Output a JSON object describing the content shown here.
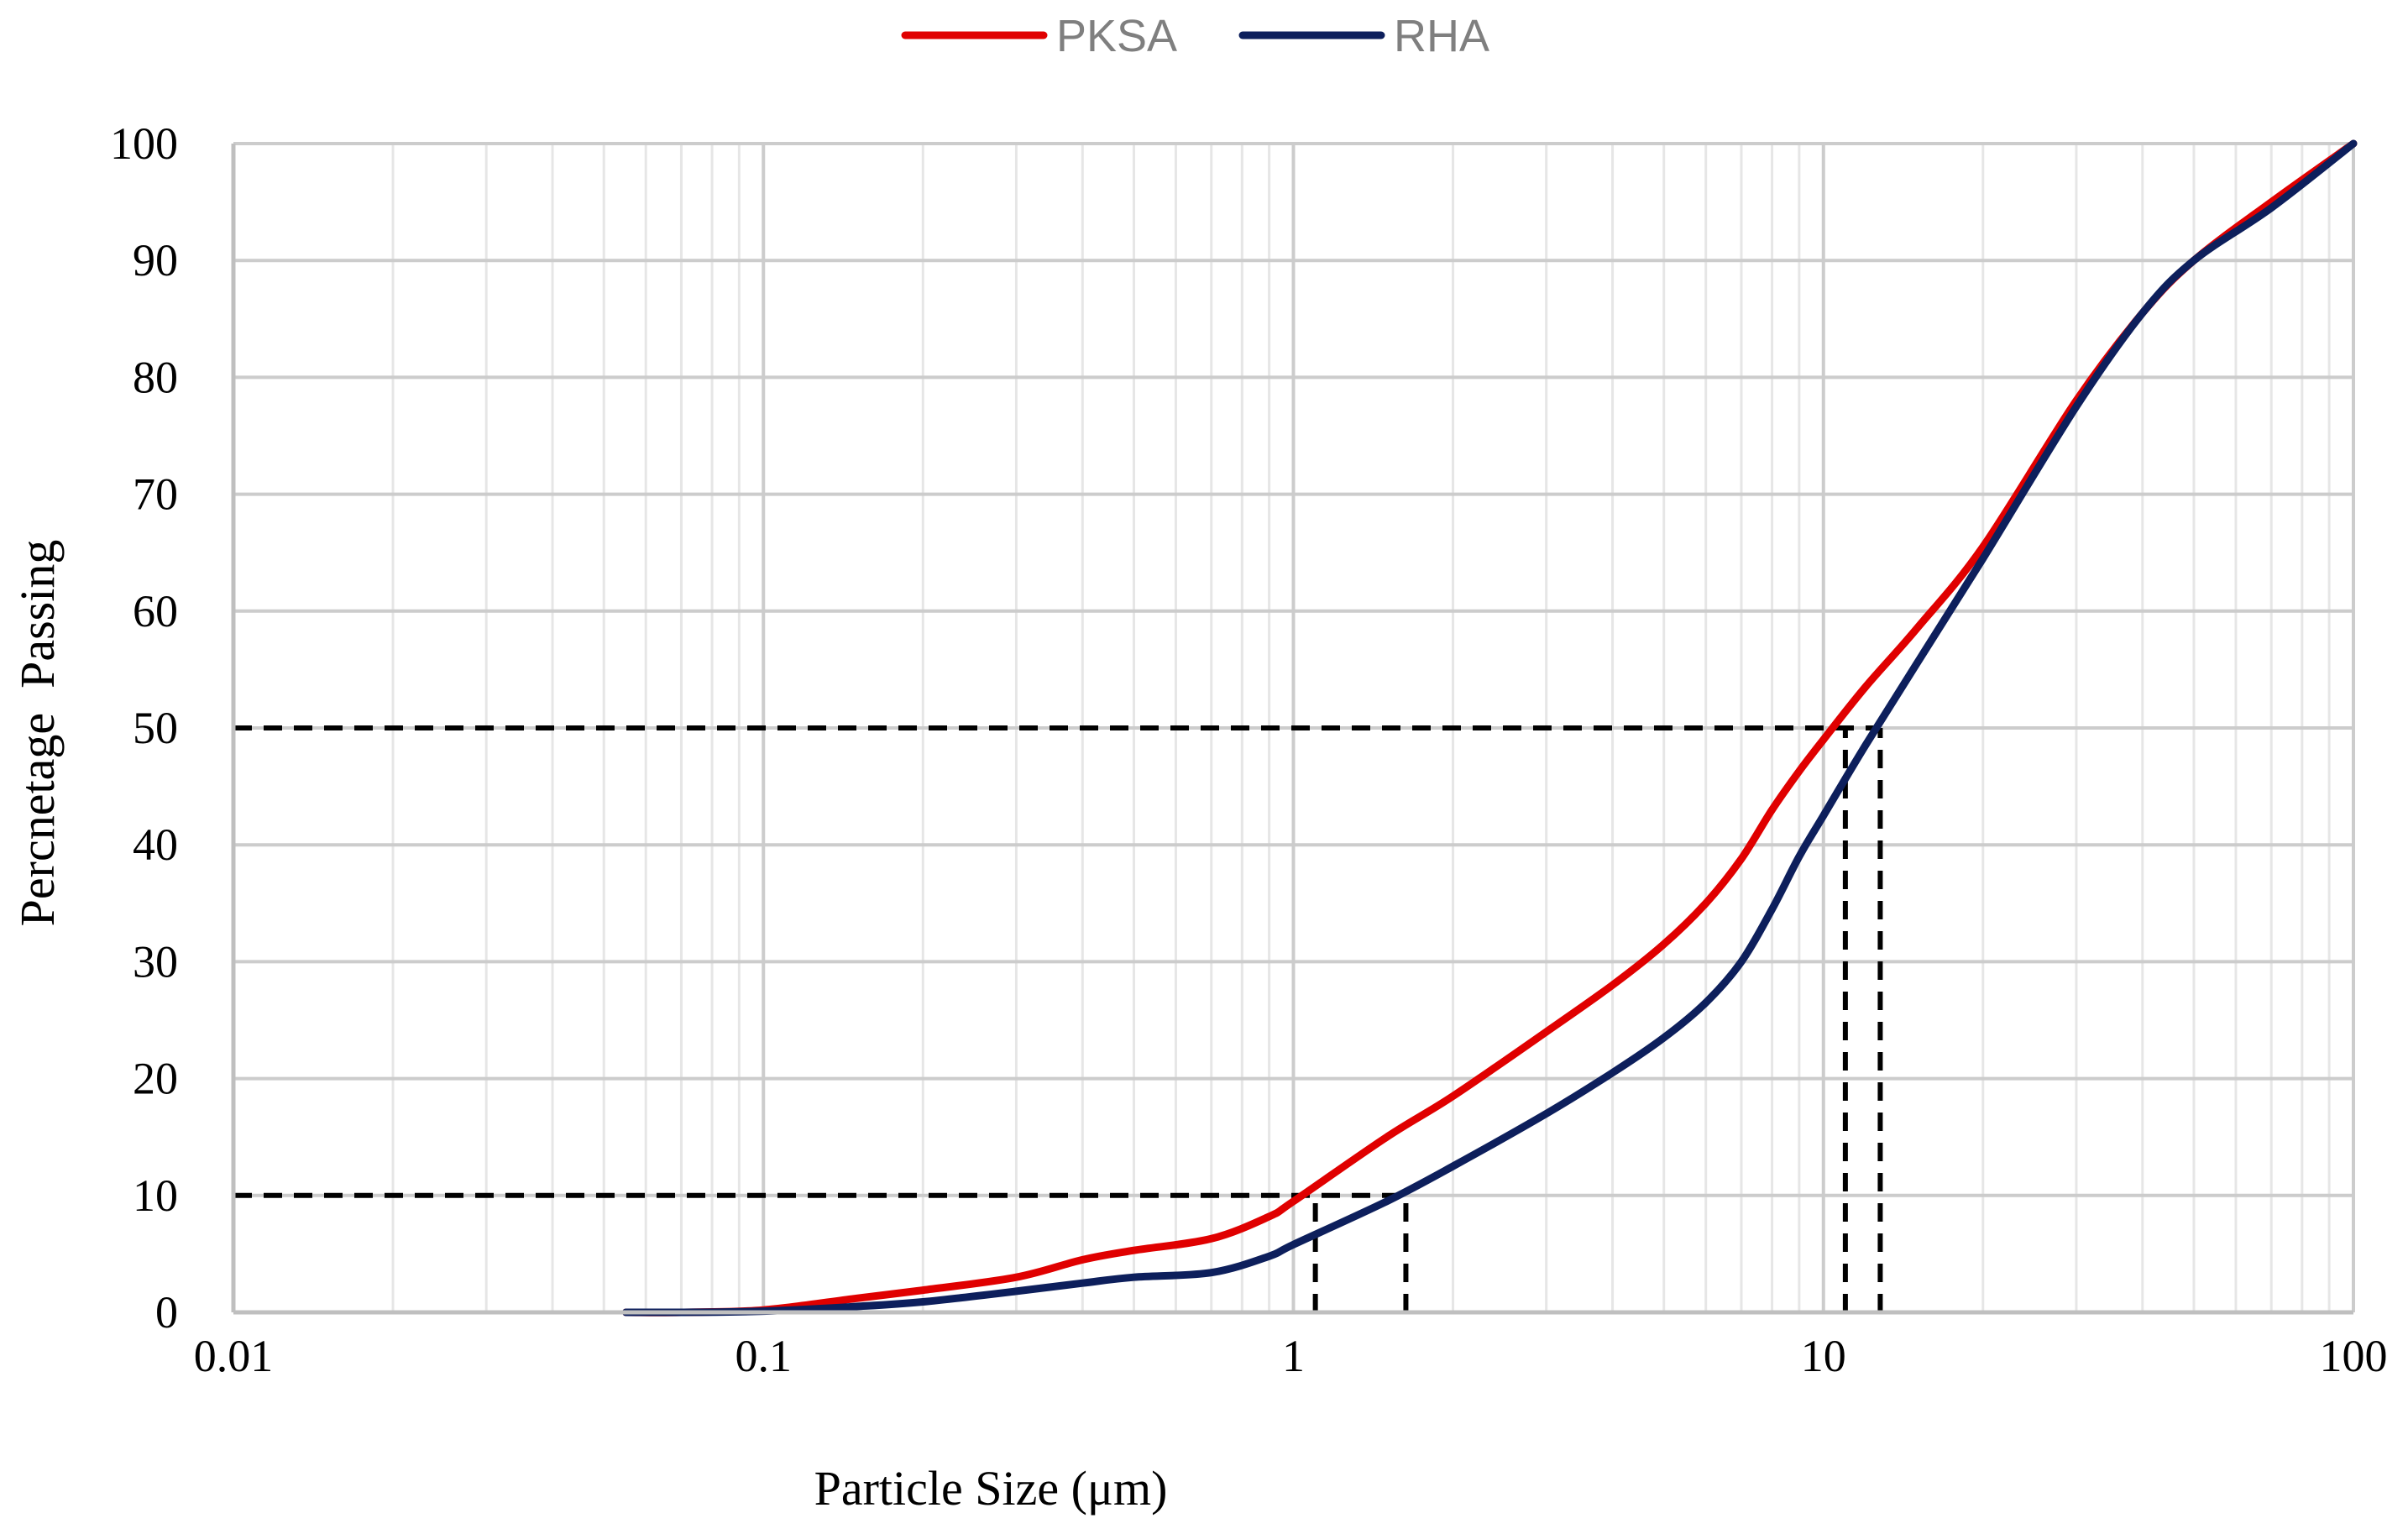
{
  "chart_data": {
    "type": "line",
    "x_scale": "log",
    "xlabel": "Particle Size (μm)",
    "ylabel": "Percnetage  Passing",
    "xlim": [
      0.01,
      100
    ],
    "ylim": [
      0,
      100
    ],
    "x_ticks": [
      0.01,
      0.1,
      1,
      10,
      100
    ],
    "x_tick_labels": [
      "0.01",
      "0.1",
      "1",
      "10",
      "100"
    ],
    "y_ticks": [
      0,
      10,
      20,
      30,
      40,
      50,
      60,
      70,
      80,
      90,
      100
    ],
    "y_tick_labels": [
      "0",
      "10",
      "20",
      "30",
      "40",
      "50",
      "60",
      "70",
      "80",
      "90",
      "100"
    ],
    "grid": true,
    "legend_position": "top-center",
    "series": [
      {
        "name": "PKSA",
        "color": "#e00000",
        "x": [
          0.055,
          0.07,
          0.1,
          0.15,
          0.2,
          0.3,
          0.4,
          0.5,
          0.7,
          0.9,
          1.0,
          1.5,
          2,
          3,
          4,
          5,
          6,
          7,
          8,
          9,
          10,
          12,
          15,
          20,
          30,
          40,
          50,
          70,
          100
        ],
        "y": [
          0,
          0,
          0.2,
          1.2,
          1.9,
          3.0,
          4.5,
          5.3,
          6.3,
          8.2,
          9.5,
          15.0,
          18.5,
          24.0,
          28.0,
          31.5,
          35.0,
          38.8,
          43.0,
          46.3,
          49.0,
          53.5,
          58.5,
          65.5,
          78.0,
          85.5,
          90.0,
          95.0,
          100
        ]
      },
      {
        "name": "RHA",
        "color": "#0d1f5c",
        "x": [
          0.055,
          0.07,
          0.1,
          0.15,
          0.2,
          0.3,
          0.4,
          0.5,
          0.7,
          0.9,
          1.0,
          1.5,
          2,
          3,
          4,
          5,
          6,
          7,
          8,
          9,
          10,
          12,
          15,
          20,
          30,
          40,
          50,
          70,
          100
        ],
        "y": [
          0,
          0,
          0.1,
          0.5,
          0.9,
          1.8,
          2.5,
          3.0,
          3.4,
          4.8,
          5.8,
          9.5,
          12.5,
          17.0,
          20.5,
          23.5,
          26.5,
          30.0,
          34.5,
          39.0,
          42.5,
          48.5,
          55.5,
          64.5,
          77.5,
          85.5,
          90.0,
          94.5,
          100
        ]
      }
    ],
    "reference_lines": [
      {
        "kind": "horizontal",
        "y": 50,
        "x_to": 12.8
      },
      {
        "kind": "horizontal",
        "y": 10,
        "x_to": 1.63
      },
      {
        "kind": "vertical",
        "x": 1.1,
        "y_to": 10
      },
      {
        "kind": "vertical",
        "x": 1.63,
        "y_to": 10
      },
      {
        "kind": "vertical",
        "x": 11.0,
        "y_to": 50
      },
      {
        "kind": "vertical",
        "x": 12.8,
        "y_to": 50
      }
    ],
    "reference_line_color": "#000000",
    "grid_major_color": "#cccccc",
    "grid_minor_color": "#e6e6e6",
    "legend_text_color": "#7f7f7f"
  }
}
